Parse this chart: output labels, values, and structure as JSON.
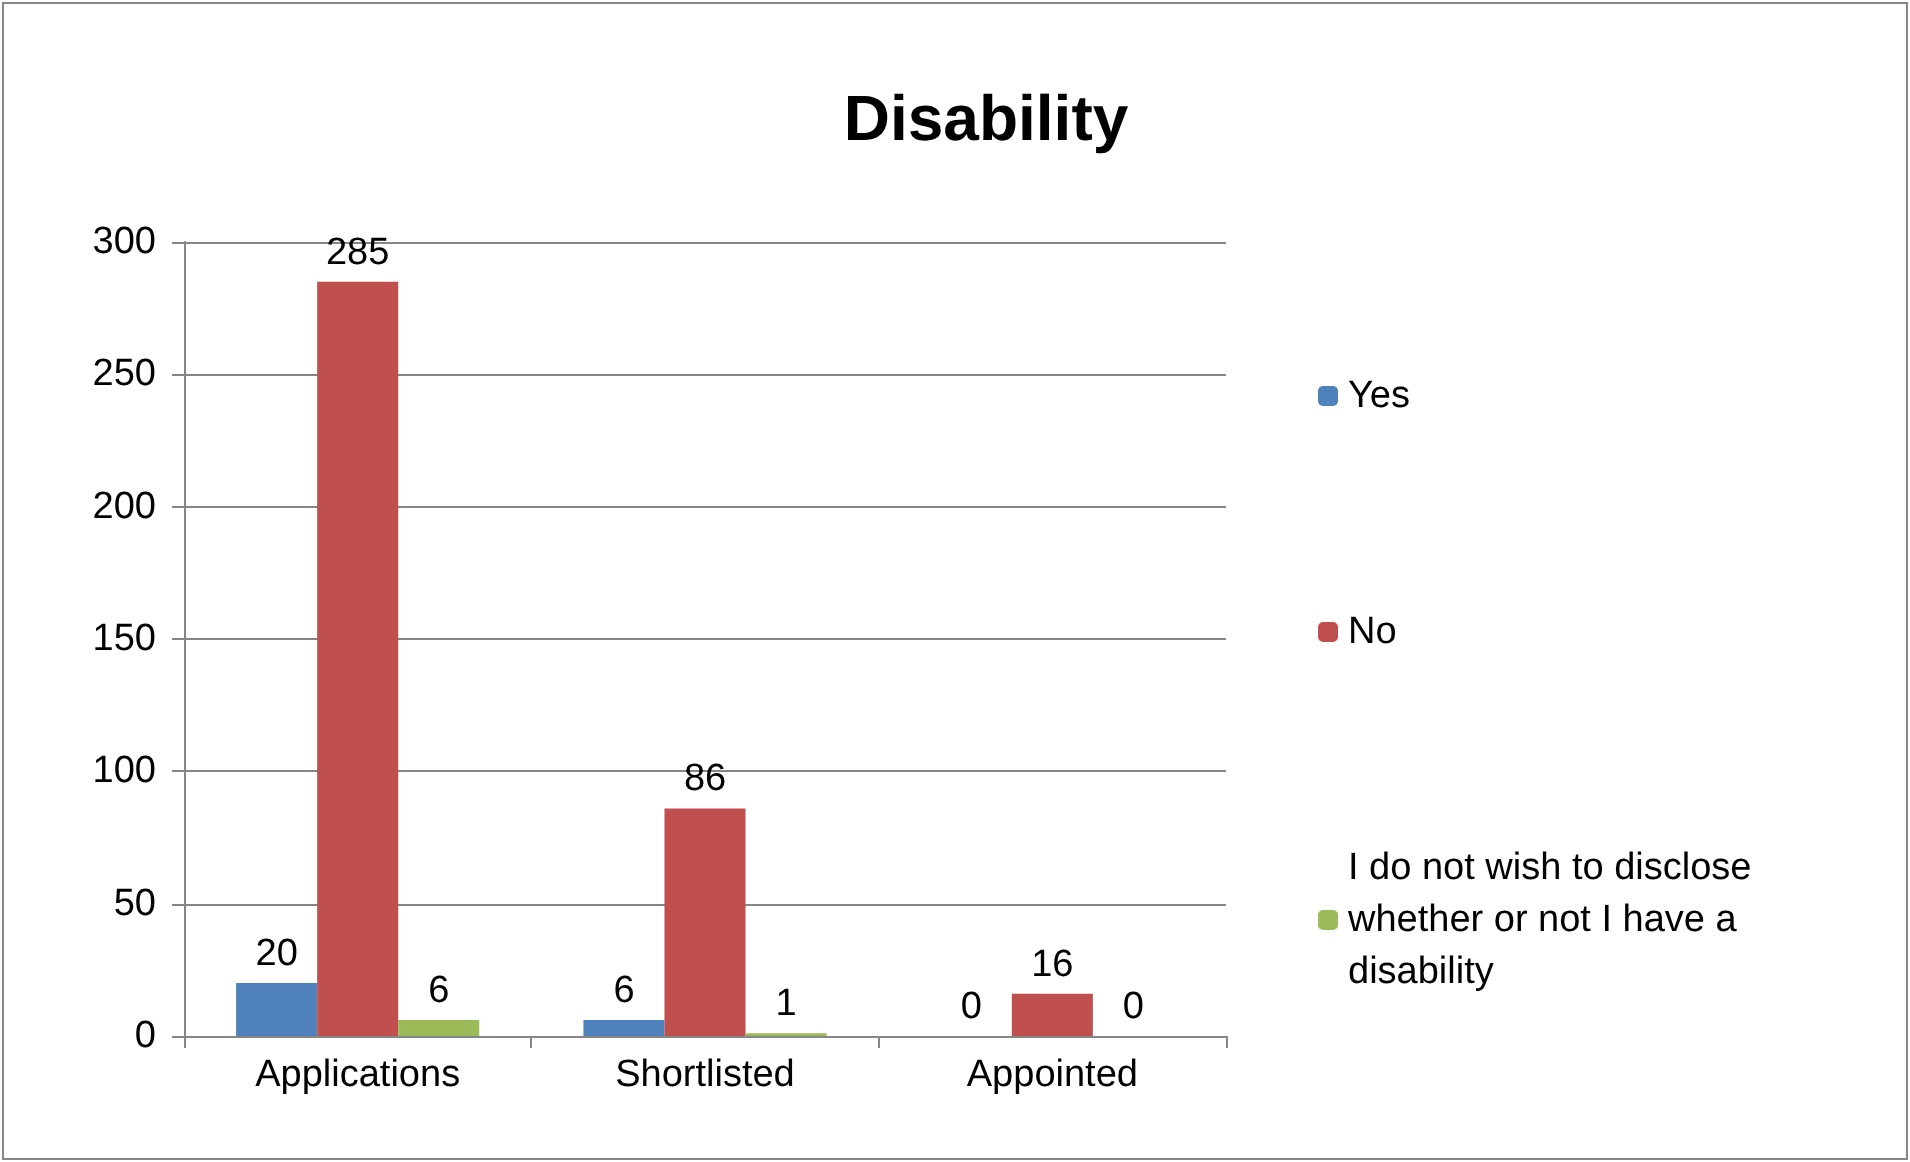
{
  "chart_data": {
    "type": "bar",
    "title": "Disability",
    "categories": [
      "Applications",
      "Shortlisted",
      "Appointed"
    ],
    "series": [
      {
        "name": "Yes",
        "color": "#4f81bd",
        "values": [
          20,
          6,
          0
        ]
      },
      {
        "name": "No",
        "color": "#c0504d",
        "values": [
          285,
          86,
          16
        ]
      },
      {
        "name": "I do not wish to disclose whether or not I have a disability",
        "color": "#9bbb59",
        "values": [
          6,
          1,
          0
        ]
      }
    ],
    "ylim": [
      0,
      300
    ],
    "yticks": [
      0,
      50,
      100,
      150,
      200,
      250,
      300
    ],
    "grid": "y",
    "legend": "right",
    "data_labels": true
  }
}
